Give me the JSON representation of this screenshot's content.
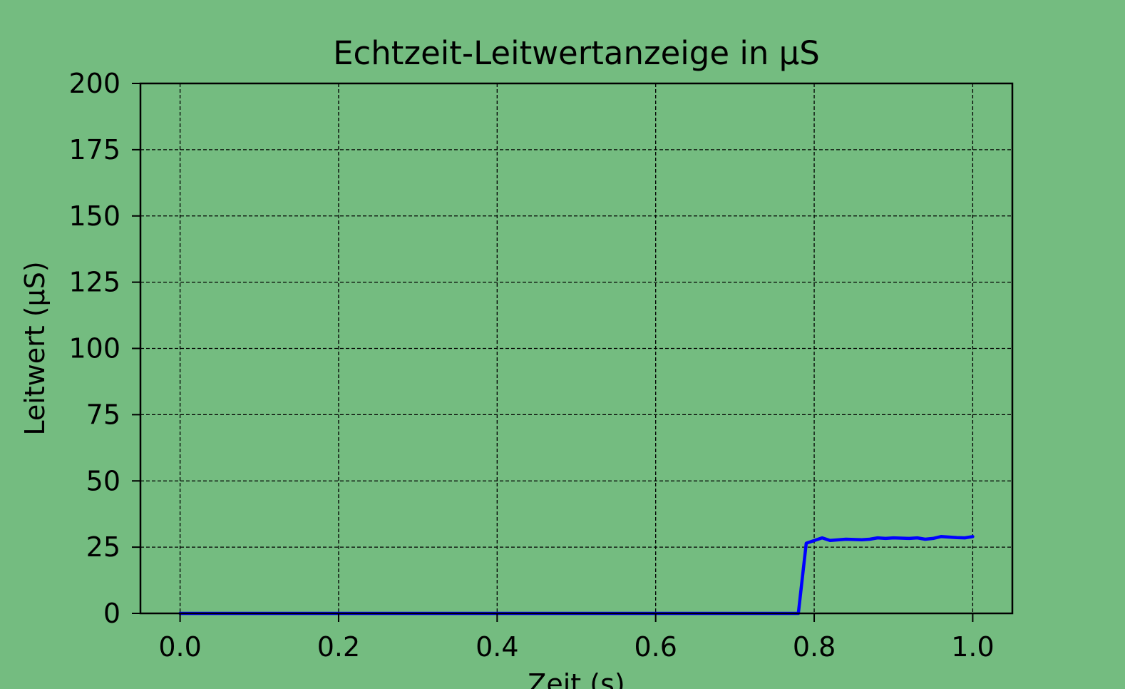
{
  "chart_data": {
    "type": "line",
    "title": "Echtzeit-Leitwertanzeige in µS",
    "xlabel": "Zeit (s)",
    "ylabel": "Leitwert (µS)",
    "xlim": [
      -0.05,
      1.05
    ],
    "ylim": [
      0,
      200
    ],
    "xticks": [
      0.0,
      0.2,
      0.4,
      0.6,
      0.8,
      1.0
    ],
    "xtick_labels": [
      "0.0",
      "0.2",
      "0.4",
      "0.6",
      "0.8",
      "1.0"
    ],
    "yticks": [
      0,
      25,
      50,
      75,
      100,
      125,
      150,
      175,
      200
    ],
    "ytick_labels": [
      "0",
      "25",
      "50",
      "75",
      "100",
      "125",
      "150",
      "175",
      "200"
    ],
    "grid": true,
    "grid_style": "dashed",
    "background_color": "#74bc80",
    "series": [
      {
        "color": "#0000ff",
        "x": [
          0.0,
          0.05,
          0.1,
          0.15,
          0.2,
          0.25,
          0.3,
          0.35,
          0.4,
          0.45,
          0.5,
          0.55,
          0.6,
          0.65,
          0.7,
          0.75,
          0.77,
          0.78,
          0.79,
          0.81,
          0.82,
          0.84,
          0.86,
          0.87,
          0.88,
          0.89,
          0.9,
          0.92,
          0.93,
          0.94,
          0.95,
          0.96,
          0.97,
          0.98,
          0.99,
          1.0
        ],
        "y": [
          0,
          0,
          0,
          0,
          0,
          0,
          0,
          0,
          0,
          0,
          0,
          0,
          0,
          0,
          0,
          0,
          0,
          0,
          26.5,
          28.5,
          27.5,
          28.0,
          27.8,
          28.0,
          28.5,
          28.3,
          28.5,
          28.3,
          28.5,
          28.0,
          28.3,
          29.0,
          28.8,
          28.6,
          28.5,
          29.0
        ]
      }
    ]
  }
}
